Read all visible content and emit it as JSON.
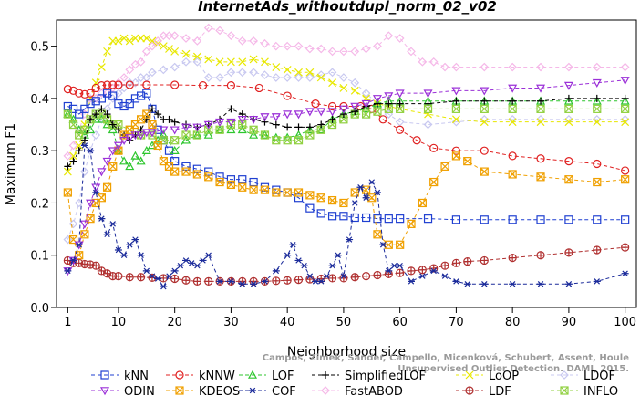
{
  "chart_data": {
    "type": "line",
    "title": "InternetAds_withoutdupl_norm_02_v02",
    "xlabel": "Neighborhood size",
    "ylabel": "Maximum F1",
    "xlim": [
      1,
      100
    ],
    "ylim": [
      0,
      0.55
    ],
    "xticks": [
      1,
      10,
      20,
      30,
      40,
      50,
      60,
      70,
      80,
      90,
      100
    ],
    "yticks": [
      0.0,
      0.1,
      0.2,
      0.3,
      0.4,
      0.5
    ],
    "ytick_labels": [
      "0.0",
      "0.1",
      "0.2",
      "0.3",
      "0.4",
      "0.5"
    ],
    "grid": false,
    "legend_position": "bottom",
    "watermark": "Campos, Zimek, Sander, Campello, Micenková, Schubert, Assent, Houle\nUnsupervised Outlier Detection. DAMI, 2015.",
    "series": [
      {
        "name": "kNN",
        "color": "#1f3fd1",
        "marker": "square",
        "x": [
          1,
          2,
          3,
          4,
          5,
          6,
          7,
          8,
          9,
          10,
          11,
          12,
          13,
          14,
          15,
          16,
          17,
          18,
          19,
          20,
          22,
          24,
          26,
          28,
          30,
          32,
          34,
          36,
          38,
          40,
          42,
          44,
          46,
          48,
          50,
          52,
          54,
          56,
          58,
          60,
          65,
          70,
          75,
          80,
          85,
          90,
          95,
          100
        ],
        "y": [
          0.385,
          0.38,
          0.37,
          0.38,
          0.39,
          0.395,
          0.4,
          0.41,
          0.405,
          0.39,
          0.385,
          0.39,
          0.4,
          0.405,
          0.41,
          0.38,
          0.34,
          0.32,
          0.3,
          0.28,
          0.27,
          0.265,
          0.26,
          0.25,
          0.245,
          0.245,
          0.24,
          0.23,
          0.225,
          0.22,
          0.21,
          0.19,
          0.18,
          0.175,
          0.175,
          0.172,
          0.172,
          0.17,
          0.17,
          0.17,
          0.17,
          0.168,
          0.168,
          0.168,
          0.168,
          0.168,
          0.168,
          0.168
        ]
      },
      {
        "name": "kNNW",
        "color": "#e02020",
        "marker": "circle",
        "x": [
          1,
          2,
          3,
          4,
          5,
          6,
          7,
          8,
          9,
          10,
          12,
          15,
          20,
          25,
          30,
          35,
          40,
          45,
          48,
          50,
          53,
          55,
          57,
          60,
          63,
          66,
          70,
          75,
          80,
          85,
          90,
          95,
          100
        ],
        "y": [
          0.418,
          0.415,
          0.41,
          0.408,
          0.41,
          0.42,
          0.425,
          0.426,
          0.426,
          0.426,
          0.426,
          0.426,
          0.426,
          0.425,
          0.425,
          0.42,
          0.405,
          0.39,
          0.385,
          0.385,
          0.385,
          0.38,
          0.36,
          0.34,
          0.32,
          0.305,
          0.3,
          0.3,
          0.29,
          0.285,
          0.28,
          0.275,
          0.262
        ]
      },
      {
        "name": "LOF",
        "color": "#2ec62e",
        "marker": "triangle-up",
        "x": [
          1,
          2,
          3,
          4,
          5,
          6,
          7,
          8,
          9,
          10,
          11,
          12,
          13,
          14,
          15,
          16,
          17,
          18,
          20,
          22,
          24,
          26,
          28,
          30,
          32,
          34,
          36,
          38,
          40,
          42,
          44,
          46,
          48,
          50,
          52,
          54,
          56,
          58,
          60,
          65,
          70,
          75,
          80,
          85,
          90,
          95,
          100
        ],
        "y": [
          0.37,
          0.36,
          0.34,
          0.33,
          0.34,
          0.36,
          0.36,
          0.35,
          0.34,
          0.3,
          0.28,
          0.27,
          0.29,
          0.28,
          0.3,
          0.31,
          0.32,
          0.33,
          0.3,
          0.32,
          0.33,
          0.33,
          0.34,
          0.34,
          0.34,
          0.33,
          0.33,
          0.325,
          0.325,
          0.33,
          0.34,
          0.34,
          0.36,
          0.37,
          0.375,
          0.38,
          0.39,
          0.395,
          0.395,
          0.395,
          0.395,
          0.395,
          0.395,
          0.395,
          0.395,
          0.395,
          0.395
        ]
      },
      {
        "name": "SimplifiedLOF",
        "color": "#000000",
        "marker": "plus",
        "x": [
          1,
          2,
          3,
          4,
          5,
          6,
          7,
          8,
          9,
          10,
          11,
          12,
          13,
          14,
          15,
          16,
          17,
          18,
          19,
          20,
          22,
          24,
          26,
          28,
          30,
          32,
          34,
          36,
          38,
          40,
          42,
          44,
          46,
          48,
          50,
          52,
          54,
          56,
          58,
          60,
          65,
          70,
          75,
          80,
          85,
          90,
          95,
          100
        ],
        "y": [
          0.27,
          0.28,
          0.3,
          0.32,
          0.36,
          0.37,
          0.38,
          0.37,
          0.35,
          0.34,
          0.33,
          0.32,
          0.33,
          0.34,
          0.36,
          0.38,
          0.37,
          0.36,
          0.36,
          0.355,
          0.35,
          0.345,
          0.35,
          0.36,
          0.38,
          0.37,
          0.36,
          0.355,
          0.35,
          0.345,
          0.345,
          0.345,
          0.35,
          0.36,
          0.37,
          0.375,
          0.385,
          0.39,
          0.39,
          0.39,
          0.39,
          0.395,
          0.395,
          0.395,
          0.395,
          0.4,
          0.4,
          0.4
        ]
      },
      {
        "name": "LoOP",
        "color": "#e8e800",
        "marker": "x",
        "x": [
          1,
          2,
          3,
          4,
          5,
          6,
          7,
          8,
          9,
          10,
          11,
          12,
          13,
          14,
          15,
          16,
          17,
          18,
          19,
          20,
          22,
          24,
          26,
          28,
          30,
          32,
          34,
          36,
          38,
          40,
          42,
          44,
          46,
          48,
          50,
          52,
          54,
          56,
          58,
          60,
          65,
          70,
          75,
          80,
          85,
          90,
          95,
          100
        ],
        "y": [
          0.26,
          0.29,
          0.31,
          0.35,
          0.4,
          0.43,
          0.46,
          0.49,
          0.51,
          0.51,
          0.515,
          0.51,
          0.515,
          0.515,
          0.515,
          0.51,
          0.505,
          0.5,
          0.495,
          0.49,
          0.485,
          0.48,
          0.475,
          0.47,
          0.47,
          0.47,
          0.475,
          0.47,
          0.46,
          0.455,
          0.45,
          0.45,
          0.44,
          0.43,
          0.42,
          0.415,
          0.4,
          0.39,
          0.385,
          0.38,
          0.37,
          0.36,
          0.355,
          0.355,
          0.355,
          0.355,
          0.355,
          0.355
        ]
      },
      {
        "name": "LDOF",
        "color": "#c8c8f0",
        "marker": "diamond",
        "x": [
          1,
          2,
          3,
          4,
          5,
          6,
          7,
          8,
          9,
          10,
          11,
          12,
          13,
          14,
          15,
          16,
          18,
          20,
          22,
          24,
          26,
          28,
          30,
          32,
          34,
          36,
          38,
          40,
          42,
          44,
          46,
          48,
          50,
          52,
          54,
          56,
          58,
          60,
          65,
          70,
          75,
          80,
          85,
          90,
          95,
          100
        ],
        "y": [
          0.13,
          0.16,
          0.2,
          0.26,
          0.3,
          0.33,
          0.36,
          0.38,
          0.4,
          0.41,
          0.42,
          0.43,
          0.43,
          0.44,
          0.44,
          0.45,
          0.455,
          0.46,
          0.47,
          0.47,
          0.44,
          0.44,
          0.45,
          0.45,
          0.45,
          0.445,
          0.44,
          0.44,
          0.44,
          0.44,
          0.445,
          0.45,
          0.44,
          0.43,
          0.41,
          0.39,
          0.37,
          0.355,
          0.35,
          0.355,
          0.36,
          0.36,
          0.36,
          0.36,
          0.36,
          0.36
        ]
      },
      {
        "name": "ODIN",
        "color": "#9b30d8",
        "marker": "triangle-down",
        "x": [
          1,
          2,
          3,
          4,
          5,
          6,
          7,
          8,
          9,
          10,
          11,
          12,
          13,
          14,
          15,
          16,
          18,
          20,
          22,
          24,
          26,
          28,
          30,
          32,
          34,
          36,
          38,
          40,
          42,
          44,
          46,
          48,
          50,
          52,
          54,
          56,
          58,
          60,
          65,
          70,
          75,
          80,
          85,
          90,
          95,
          100
        ],
        "y": [
          0.07,
          0.09,
          0.12,
          0.16,
          0.2,
          0.23,
          0.26,
          0.28,
          0.3,
          0.31,
          0.32,
          0.325,
          0.33,
          0.33,
          0.335,
          0.335,
          0.34,
          0.34,
          0.345,
          0.345,
          0.35,
          0.355,
          0.355,
          0.36,
          0.36,
          0.365,
          0.365,
          0.37,
          0.37,
          0.375,
          0.375,
          0.375,
          0.38,
          0.385,
          0.39,
          0.4,
          0.405,
          0.41,
          0.41,
          0.415,
          0.415,
          0.42,
          0.42,
          0.425,
          0.43,
          0.435
        ]
      },
      {
        "name": "KDEOS",
        "color": "#f0a000",
        "marker": "square-x",
        "x": [
          1,
          2,
          3,
          4,
          5,
          6,
          7,
          8,
          9,
          10,
          11,
          12,
          13,
          14,
          15,
          16,
          17,
          18,
          19,
          20,
          22,
          24,
          26,
          28,
          30,
          32,
          34,
          36,
          38,
          40,
          42,
          44,
          46,
          48,
          50,
          52,
          54,
          55,
          56,
          58,
          60,
          62,
          64,
          66,
          68,
          70,
          72,
          75,
          80,
          85,
          90,
          95,
          100
        ],
        "y": [
          0.22,
          0.13,
          0.1,
          0.14,
          0.17,
          0.2,
          0.21,
          0.23,
          0.27,
          0.3,
          0.33,
          0.34,
          0.35,
          0.36,
          0.37,
          0.35,
          0.31,
          0.28,
          0.27,
          0.26,
          0.26,
          0.255,
          0.25,
          0.24,
          0.235,
          0.23,
          0.225,
          0.225,
          0.22,
          0.22,
          0.22,
          0.215,
          0.21,
          0.205,
          0.2,
          0.22,
          0.225,
          0.21,
          0.14,
          0.12,
          0.12,
          0.16,
          0.2,
          0.24,
          0.27,
          0.29,
          0.28,
          0.26,
          0.255,
          0.25,
          0.245,
          0.24,
          0.245
        ]
      },
      {
        "name": "COF",
        "color": "#1a2a9a",
        "marker": "asterisk",
        "x": [
          1,
          2,
          3,
          4,
          5,
          6,
          7,
          8,
          9,
          10,
          11,
          12,
          13,
          14,
          15,
          16,
          17,
          18,
          19,
          20,
          21,
          22,
          23,
          24,
          25,
          26,
          28,
          30,
          32,
          34,
          36,
          38,
          40,
          41,
          42,
          43,
          44,
          45,
          46,
          47,
          48,
          49,
          50,
          51,
          52,
          53,
          54,
          55,
          56,
          57,
          58,
          59,
          60,
          62,
          64,
          66,
          68,
          70,
          72,
          75,
          80,
          85,
          90,
          95,
          100
        ],
        "y": [
          0.07,
          0.09,
          0.12,
          0.31,
          0.3,
          0.22,
          0.17,
          0.14,
          0.16,
          0.11,
          0.1,
          0.12,
          0.13,
          0.1,
          0.07,
          0.06,
          0.055,
          0.04,
          0.06,
          0.07,
          0.08,
          0.09,
          0.085,
          0.08,
          0.09,
          0.1,
          0.05,
          0.05,
          0.045,
          0.045,
          0.05,
          0.07,
          0.1,
          0.12,
          0.09,
          0.08,
          0.06,
          0.05,
          0.05,
          0.06,
          0.08,
          0.1,
          0.06,
          0.13,
          0.2,
          0.23,
          0.21,
          0.24,
          0.22,
          0.12,
          0.07,
          0.08,
          0.08,
          0.05,
          0.06,
          0.07,
          0.06,
          0.05,
          0.045,
          0.045,
          0.045,
          0.045,
          0.045,
          0.05,
          0.065
        ]
      },
      {
        "name": "FastABOD",
        "color": "#f5b8e8",
        "marker": "diamond",
        "x": [
          1,
          2,
          3,
          4,
          5,
          6,
          7,
          8,
          9,
          10,
          11,
          12,
          13,
          14,
          15,
          16,
          17,
          18,
          19,
          20,
          22,
          24,
          26,
          28,
          30,
          32,
          34,
          36,
          38,
          40,
          42,
          44,
          46,
          48,
          50,
          52,
          54,
          56,
          58,
          60,
          62,
          64,
          66,
          68,
          70,
          75,
          80,
          85,
          90,
          95,
          100
        ],
        "y": [
          0.29,
          0.31,
          0.34,
          0.37,
          0.4,
          0.4,
          0.41,
          0.41,
          0.42,
          0.43,
          0.44,
          0.455,
          0.465,
          0.47,
          0.49,
          0.5,
          0.51,
          0.52,
          0.52,
          0.52,
          0.515,
          0.51,
          0.535,
          0.53,
          0.52,
          0.51,
          0.51,
          0.505,
          0.5,
          0.5,
          0.5,
          0.495,
          0.495,
          0.49,
          0.49,
          0.49,
          0.495,
          0.5,
          0.52,
          0.515,
          0.49,
          0.47,
          0.47,
          0.46,
          0.46,
          0.46,
          0.46,
          0.46,
          0.46,
          0.46,
          0.46
        ]
      },
      {
        "name": "LDF",
        "color": "#b03030",
        "marker": "circle-plus",
        "x": [
          1,
          2,
          3,
          4,
          5,
          6,
          7,
          8,
          9,
          10,
          12,
          14,
          16,
          18,
          20,
          22,
          24,
          26,
          28,
          30,
          32,
          34,
          36,
          38,
          40,
          42,
          44,
          46,
          48,
          50,
          52,
          54,
          56,
          58,
          60,
          62,
          64,
          66,
          68,
          70,
          72,
          75,
          80,
          85,
          90,
          95,
          100
        ],
        "y": [
          0.09,
          0.085,
          0.085,
          0.083,
          0.082,
          0.08,
          0.07,
          0.065,
          0.06,
          0.06,
          0.058,
          0.058,
          0.057,
          0.056,
          0.055,
          0.052,
          0.05,
          0.05,
          0.05,
          0.05,
          0.05,
          0.05,
          0.05,
          0.051,
          0.052,
          0.053,
          0.054,
          0.055,
          0.056,
          0.056,
          0.058,
          0.06,
          0.062,
          0.064,
          0.066,
          0.07,
          0.072,
          0.075,
          0.08,
          0.085,
          0.088,
          0.09,
          0.095,
          0.1,
          0.105,
          0.11,
          0.115
        ]
      },
      {
        "name": "INFLO",
        "color": "#90d040",
        "marker": "square-x",
        "x": [
          1,
          2,
          3,
          4,
          5,
          6,
          7,
          8,
          9,
          10,
          12,
          14,
          16,
          18,
          20,
          22,
          24,
          26,
          28,
          30,
          32,
          34,
          36,
          38,
          40,
          42,
          44,
          46,
          48,
          50,
          52,
          54,
          56,
          58,
          60,
          65,
          70,
          75,
          80,
          85,
          90,
          95,
          100
        ],
        "y": [
          0.37,
          0.35,
          0.33,
          0.34,
          0.36,
          0.37,
          0.37,
          0.36,
          0.35,
          0.35,
          0.34,
          0.33,
          0.33,
          0.32,
          0.32,
          0.33,
          0.33,
          0.34,
          0.34,
          0.35,
          0.35,
          0.34,
          0.33,
          0.32,
          0.32,
          0.32,
          0.33,
          0.34,
          0.35,
          0.36,
          0.37,
          0.37,
          0.375,
          0.38,
          0.38,
          0.38,
          0.38,
          0.38,
          0.38,
          0.38,
          0.38,
          0.38,
          0.38
        ]
      }
    ]
  }
}
